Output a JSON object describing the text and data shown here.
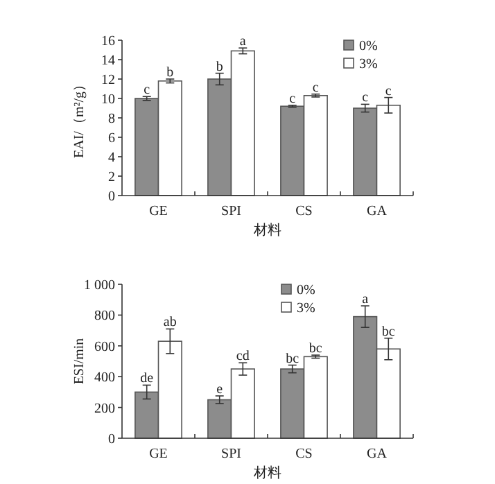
{
  "chart_data": [
    {
      "type": "bar",
      "ylabel": "EAI/（m²/g）",
      "xlabel": "材料",
      "categories": [
        "GE",
        "SPI",
        "CS",
        "GA"
      ],
      "ylim": [
        0,
        16
      ],
      "yticks": [
        0,
        2,
        4,
        6,
        8,
        10,
        12,
        14,
        16
      ],
      "legend": "top right",
      "grid": false,
      "series": [
        {
          "name": "0%",
          "color": "#8c8c8c",
          "values": [
            10.0,
            12.0,
            9.2,
            9.0
          ],
          "errors": [
            0.2,
            0.6,
            0.1,
            0.4
          ],
          "value_labels": [
            "c",
            "b",
            "c",
            "c"
          ]
        },
        {
          "name": "3%",
          "color": "#ffffff",
          "values": [
            11.8,
            14.9,
            10.3,
            9.3
          ],
          "errors": [
            0.2,
            0.3,
            0.15,
            0.8
          ],
          "value_labels": [
            "b",
            "a",
            "c",
            "c"
          ]
        }
      ]
    },
    {
      "type": "bar",
      "ylabel": "ESI/min",
      "xlabel": "材料",
      "categories": [
        "GE",
        "SPI",
        "CS",
        "GA"
      ],
      "ylim": [
        0,
        1000
      ],
      "yticks": [
        0,
        200,
        400,
        600,
        800,
        {
          "value": 1000,
          "label": "1 000"
        }
      ],
      "legend": "top",
      "grid": false,
      "series": [
        {
          "name": "0%",
          "color": "#8c8c8c",
          "values": [
            300,
            250,
            450,
            790
          ],
          "errors": [
            45,
            25,
            25,
            70
          ],
          "value_labels": [
            "de",
            "e",
            "bc",
            "a"
          ]
        },
        {
          "name": "3%",
          "color": "#ffffff",
          "values": [
            630,
            450,
            530,
            580
          ],
          "errors": [
            80,
            40,
            10,
            70
          ],
          "value_labels": [
            "ab",
            "cd",
            "bc",
            "bc"
          ]
        }
      ]
    }
  ]
}
